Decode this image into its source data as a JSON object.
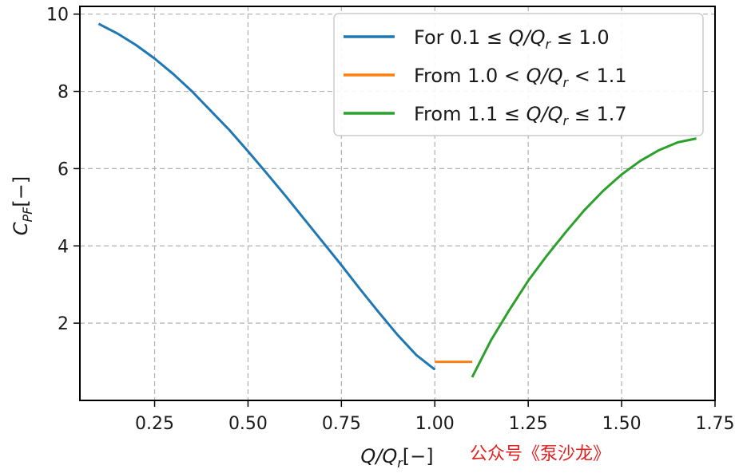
{
  "chart_data": {
    "type": "line",
    "xlabel_main": "Q/Q",
    "xlabel_sub": "r",
    "xlabel_unit": "[−]",
    "ylabel_main": "C",
    "ylabel_sub": "PF",
    "ylabel_unit": "[−]",
    "xlim": [
      0.05,
      1.75
    ],
    "ylim": [
      0,
      10.2
    ],
    "xticks": [
      "0.25",
      "0.50",
      "0.75",
      "1.00",
      "1.25",
      "1.50",
      "1.75"
    ],
    "yticks": [
      "2",
      "4",
      "6",
      "8",
      "10"
    ],
    "grid": true,
    "legend_position": "top-right",
    "series": [
      {
        "name": "For 0.1 ≤ Q/Qr ≤ 1.0",
        "legend_parts": [
          "For 0.1 ≤ ",
          "Q/Q",
          "r",
          " ≤ 1.0"
        ],
        "color": "#1f77b4",
        "x": [
          0.1,
          0.15,
          0.2,
          0.25,
          0.3,
          0.35,
          0.4,
          0.45,
          0.5,
          0.55,
          0.6,
          0.65,
          0.7,
          0.75,
          0.8,
          0.85,
          0.9,
          0.95,
          1.0
        ],
        "y": [
          9.75,
          9.5,
          9.2,
          8.85,
          8.45,
          8.0,
          7.5,
          7.0,
          6.45,
          5.88,
          5.3,
          4.7,
          4.1,
          3.5,
          2.88,
          2.28,
          1.7,
          1.18,
          0.8
        ]
      },
      {
        "name": "From 1.0 < Q/Qr < 1.1",
        "legend_parts": [
          "From 1.0 < ",
          "Q/Q",
          "r",
          " < 1.1"
        ],
        "color": "#ff7f0e",
        "x": [
          1.0,
          1.1
        ],
        "y": [
          1.0,
          1.0
        ]
      },
      {
        "name": "From 1.1 ≤ Q/Qr ≤ 1.7",
        "legend_parts": [
          "From 1.1 ≤ ",
          "Q/Q",
          "r",
          " ≤ 1.7"
        ],
        "color": "#2ca02c",
        "x": [
          1.1,
          1.15,
          1.2,
          1.25,
          1.3,
          1.35,
          1.4,
          1.45,
          1.5,
          1.55,
          1.6,
          1.65,
          1.7
        ],
        "y": [
          0.6,
          1.55,
          2.35,
          3.1,
          3.75,
          4.35,
          4.92,
          5.42,
          5.85,
          6.2,
          6.48,
          6.68,
          6.78
        ]
      }
    ]
  },
  "watermark": "公众号《泵沙龙》"
}
